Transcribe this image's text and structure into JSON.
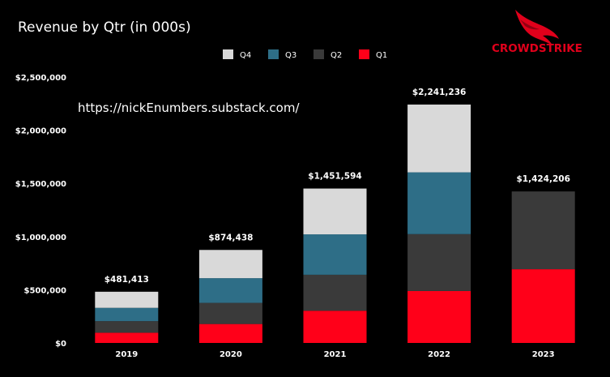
{
  "chart_data": {
    "type": "bar",
    "stacked": true,
    "title": "Revenue by Qtr (in 000s)",
    "categories": [
      "2019",
      "2020",
      "2021",
      "2022",
      "2023"
    ],
    "series": [
      {
        "name": "Q1",
        "color": "#ff0019",
        "values": [
          96000,
          178000,
          303000,
          488000,
          693000
        ]
      },
      {
        "name": "Q2",
        "color": "#3a3a3a",
        "values": [
          109000,
          199000,
          338000,
          535000,
          731206
        ]
      },
      {
        "name": "Q3",
        "color": "#2e6e87",
        "values": [
          125000,
          232000,
          380000,
          581000,
          0
        ]
      },
      {
        "name": "Q4",
        "color": "#d9d9d9",
        "values": [
          151413,
          265438,
          430594,
          637236,
          0
        ]
      }
    ],
    "legend_order": [
      "Q4",
      "Q3",
      "Q2",
      "Q1"
    ],
    "legend_position": "top",
    "totals": [
      "$481,413",
      "$874,438",
      "$1,451,594",
      "$2,241,236",
      "$1,424,206"
    ],
    "ylim": [
      0,
      2500000
    ],
    "yticks": [
      0,
      500000,
      1000000,
      1500000,
      2000000,
      2500000
    ],
    "ytick_labels": [
      "$0",
      "$500,000",
      "$1,000,000",
      "$1,500,000",
      "$2,000,000",
      "$2,500,000"
    ],
    "xlabel": "",
    "ylabel": "",
    "grid": false
  },
  "annotation": "https://nickEnumbers.substack.com/",
  "brand": {
    "name": "CROWDSTRIKE",
    "logo": "falcon-logo",
    "color": "#e0001b"
  }
}
